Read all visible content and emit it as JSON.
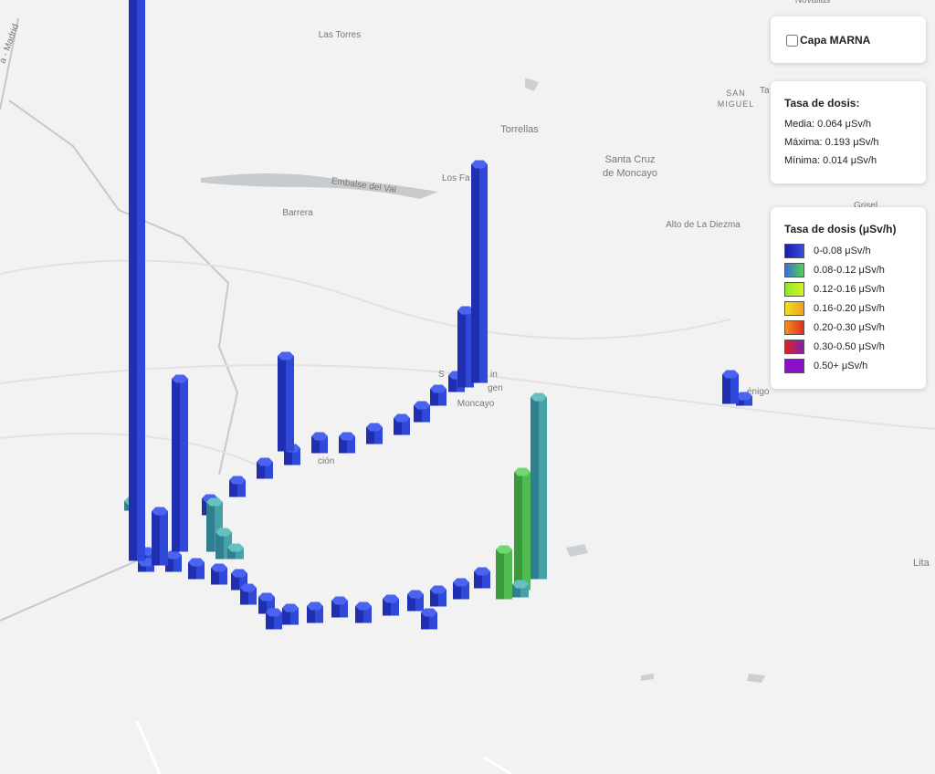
{
  "map_labels": [
    "Novallas",
    "Las Torres",
    "Torrellas",
    "Santa Cruz",
    "de Moncayo",
    "Los Fa",
    "Barrera",
    "Embalse del Val",
    "SAN",
    "MIGUEL",
    "Ta",
    "Grisel",
    "Alto de La Diezma",
    "S",
    "in",
    "gen",
    "Moncayo",
    "énigo",
    "Lita",
    "ción",
    "a - Madrid"
  ],
  "layer_toggle": {
    "label": "Capa MARNA"
  },
  "stats": {
    "title": "Tasa de dosis:",
    "lines": [
      "Media: 0.064 μSv/h",
      "Máxima: 0.193 μSv/h",
      "Mínima: 0.014 μSv/h"
    ]
  },
  "legend": {
    "title": "Tasa de dosis (μSv/h)",
    "items": [
      {
        "label": "0-0.08 μSv/h",
        "colors": [
          "#1a1aa8",
          "#3a4ee0"
        ]
      },
      {
        "label": "0.08-0.12 μSv/h",
        "colors": [
          "#3a6fd8",
          "#4fd44f"
        ]
      },
      {
        "label": "0.12-0.16 μSv/h",
        "colors": [
          "#8ee830",
          "#d8f020"
        ]
      },
      {
        "label": "0.16-0.20 μSv/h",
        "colors": [
          "#f0e020",
          "#f0a020"
        ]
      },
      {
        "label": "0.20-0.30 μSv/h",
        "colors": [
          "#f09020",
          "#e03020"
        ]
      },
      {
        "label": "0.30-0.50 μSv/h",
        "colors": [
          "#e02020",
          "#8020b0"
        ]
      },
      {
        "label": "0.50+ μSv/h",
        "colors": [
          "#8a10c8",
          "#8a10c8"
        ]
      }
    ]
  }
}
